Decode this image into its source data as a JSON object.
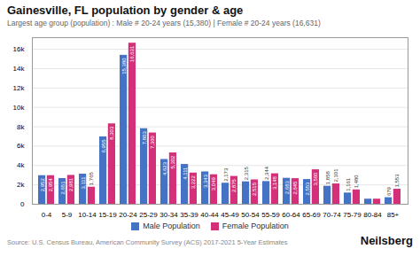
{
  "chart_data": {
    "type": "bar",
    "title": "Gainesville, FL population by gender & age",
    "subtitle": "Largest age group (population) : Male # 20-24 years (15,380) | Female # 20-24 years (16,631)",
    "source": "Source: U.S. Census Bureau, American Community Survey (ACS) 2017-2021 5-Year Estimates",
    "annotations": [
      "Neilsberg"
    ],
    "categories": [
      "0-4",
      "5-9",
      "10-14",
      "15-19",
      "20-24",
      "25-29",
      "30-34",
      "35-39",
      "40-44",
      "45-49",
      "50-54",
      "55-59",
      "60-64",
      "65-69",
      "70-74",
      "75-79",
      "80-84",
      "85+"
    ],
    "series": [
      {
        "name": "Male Population",
        "color": "#4472c4",
        "values": [
          2952,
          2651,
          3111,
          6955,
          15380,
          7803,
          4623,
          4111,
          3343,
          2173,
          2315,
          2344,
          2683,
          2553,
          1858,
          1161,
          529,
          679
        ],
        "value_labels": [
          "2,952",
          "2,651",
          "3,111",
          "6,955",
          "15,380",
          "7,803",
          "4,623",
          "4,111",
          "3,343",
          "2,173",
          "2,315",
          "2,344",
          "2,683",
          "2,553",
          "1,858",
          "1,161",
          null,
          "679"
        ]
      },
      {
        "name": "Female Population",
        "color": "#d4307a",
        "values": [
          2954,
          2981,
          1765,
          8303,
          16631,
          7360,
          5302,
          3222,
          3049,
          2875,
          2515,
          3148,
          2645,
          3560,
          2101,
          1480,
          529,
          1553
        ],
        "value_labels": [
          "2,954",
          "2,981",
          "1,765",
          "8,303",
          "16,631",
          "7,360",
          "5,302",
          "3,222",
          "3,049",
          "2,875",
          "2,515",
          "3,148",
          "2,645",
          "3,560",
          "2,101",
          "1,480",
          null,
          "1,553"
        ]
      }
    ],
    "ylim": [
      0,
      17200
    ],
    "yticks": [
      0,
      {
        "value": 2000,
        "label": "2k"
      },
      {
        "value": 4000,
        "label": "4k"
      },
      {
        "value": 6000,
        "label": "6k"
      },
      {
        "value": 8000,
        "label": "8k"
      },
      {
        "value": 10000,
        "label": "10k"
      },
      {
        "value": 12000,
        "label": "12k"
      },
      {
        "value": 14000,
        "label": "14k"
      },
      {
        "value": 16000,
        "label": "16k"
      }
    ],
    "grid": true,
    "legend": "bottom",
    "data_labels": true
  }
}
